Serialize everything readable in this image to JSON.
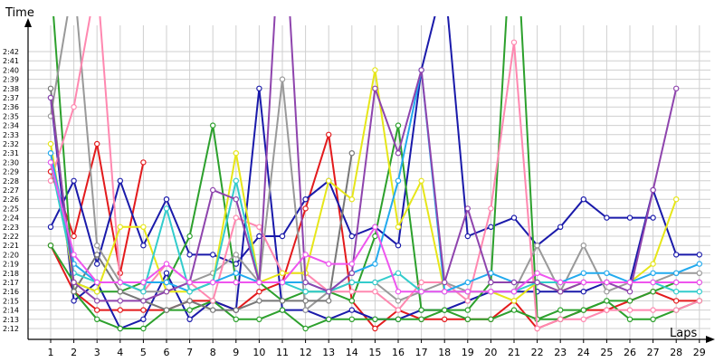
{
  "chart_data": {
    "type": "line",
    "title": "",
    "xlabel": "Laps",
    "ylabel": "Time",
    "x": [
      1,
      2,
      3,
      4,
      5,
      6,
      7,
      8,
      9,
      10,
      11,
      12,
      13,
      14,
      15,
      16,
      17,
      18,
      19,
      20,
      21,
      22,
      23,
      24,
      25,
      26,
      27,
      28,
      29
    ],
    "ylim_seconds": [
      128,
      165
    ],
    "y_tick_labels": [
      "2:12",
      "2:13",
      "2:14",
      "2:15",
      "2:16",
      "2:17",
      "2:18",
      "2:19",
      "2:20",
      "2:21",
      "2:22",
      "2:23",
      "2:24",
      "2:25",
      "2:26",
      "2:27",
      "2:28",
      "2:29",
      "2:30",
      "2:31",
      "2:32",
      "2:33",
      "2:34",
      "2:35",
      "2:36",
      "2:37",
      "2:38",
      "2:39",
      "2:40",
      "2:41",
      "2:42"
    ],
    "grid": true,
    "series": [
      {
        "color": "#e31a1c",
        "values": [
          "2:29",
          "2:22",
          "2:32",
          "2:18",
          "2:30",
          null,
          null,
          null,
          null,
          null,
          null,
          null,
          null,
          null,
          null,
          null,
          null,
          null,
          null,
          null,
          null,
          null,
          null,
          null,
          null,
          null,
          null,
          null,
          null
        ]
      },
      {
        "color": "#e31a1c",
        "values": [
          "2:21",
          "2:16",
          "2:14",
          "2:14",
          "2:14",
          "2:14",
          "2:15",
          "2:15",
          "2:14",
          "2:16",
          "2:17",
          "2:25",
          "2:33",
          "2:15",
          "2:12",
          "2:14",
          "2:13",
          "2:13",
          "2:13",
          "2:13",
          "2:15",
          "2:12",
          "2:13",
          "2:14",
          "2:14",
          "2:15",
          "2:16",
          "2:15",
          "2:15"
        ]
      },
      {
        "color": "#1a1aaa",
        "values": [
          "2:37",
          "2:15",
          "2:17",
          "2:12",
          "2:13",
          "2:18",
          "2:13",
          "2:15",
          "2:14",
          "2:38",
          "2:14",
          "2:14",
          "2:13",
          "2:14",
          "2:13",
          "2:13",
          "2:14",
          "2:14",
          "2:15",
          "2:16",
          "2:16",
          "2:16",
          "2:16",
          "2:16",
          "2:17",
          "2:17",
          "2:27",
          "2:20",
          "2:20"
        ]
      },
      {
        "color": "#1a1aaa",
        "values": [
          "2:23",
          "2:28",
          "2:19",
          "2:28",
          "2:21",
          "2:26",
          "2:20",
          "2:20",
          "2:19",
          "2:22",
          "2:22",
          "2:26",
          "2:28",
          "2:22",
          "2:23",
          "2:21",
          "2:40",
          "2:50",
          "2:22",
          "2:23",
          "2:24",
          "2:21",
          "2:23",
          "2:26",
          "2:24",
          "2:24",
          "2:24",
          null,
          null
        ]
      },
      {
        "color": "#2ca02c",
        "values": [
          "2:50",
          "2:16",
          "2:13",
          "2:12",
          "2:12",
          "2:14",
          "2:14",
          "2:15",
          "2:13",
          "2:13",
          "2:14",
          "2:12",
          "2:13",
          "2:13",
          "2:13",
          "2:13",
          "2:13",
          "2:14",
          "2:13",
          "2:13",
          "2:14",
          "2:13",
          "2:13",
          "2:14",
          "2:15",
          "2:13",
          "2:13",
          "2:14",
          "2:15"
        ]
      },
      {
        "color": "#2ca02c",
        "values": [
          "2:21",
          "2:17",
          "2:16",
          "2:16",
          "2:17",
          "2:17",
          "2:22",
          "2:34",
          "2:17",
          "2:17",
          "2:15",
          "2:16",
          "2:16",
          "2:15",
          "2:22",
          "2:34",
          "2:14",
          "2:14",
          "2:14",
          "2:17",
          "2:60",
          "2:13",
          "2:14",
          "2:14",
          "2:15",
          "2:15",
          "2:16",
          "2:17",
          "2:17"
        ]
      },
      {
        "color": "#999999",
        "values": [
          "2:35",
          "2:50",
          "2:21",
          "2:17",
          "2:16",
          "2:16",
          "2:17",
          "2:18",
          "2:20",
          "2:17",
          "2:39",
          "2:14",
          "2:16",
          "2:17",
          "2:17",
          "2:15",
          "2:16",
          "2:17",
          "2:16",
          "2:16",
          "2:16",
          "2:21",
          "2:16",
          "2:21",
          "2:16",
          "2:17",
          "2:17",
          "2:18",
          "2:18"
        ]
      },
      {
        "color": "#777777",
        "values": [
          "2:38",
          "2:16",
          "2:20",
          "2:16",
          "2:15",
          "2:14",
          "2:15",
          "2:14",
          "2:14",
          "2:15",
          "2:15",
          "2:15",
          "2:15",
          "2:31",
          null,
          null,
          null,
          null,
          null,
          null,
          null,
          null,
          null,
          null,
          null,
          null,
          null,
          null,
          null
        ]
      },
      {
        "color": "#ff88b0",
        "values": [
          "2:28",
          "2:36",
          "2:50",
          "2:17",
          "2:16",
          "2:19",
          "2:17",
          "2:15",
          "2:24",
          "2:23",
          "2:18",
          "2:18",
          "2:16",
          "2:16",
          "2:16",
          "2:14",
          "2:17",
          "2:17",
          "2:15",
          "2:25",
          "2:43",
          "2:12",
          "2:13",
          "2:13",
          "2:14",
          "2:14",
          "2:14",
          "2:14",
          "2:15"
        ]
      },
      {
        "color": "#e6e619",
        "values": [
          "2:32",
          "2:17",
          "2:16",
          "2:23",
          "2:23",
          "2:16",
          "2:16",
          "2:17",
          "2:31",
          "2:17",
          "2:18",
          "2:18",
          "2:28",
          "2:26",
          "2:40",
          "2:23",
          "2:28",
          "2:16",
          "2:16",
          "2:16",
          "2:15",
          "2:17",
          "2:16",
          "2:17",
          "2:17",
          "2:17",
          "2:19",
          "2:26",
          null
        ]
      },
      {
        "color": "#22aaee",
        "values": [
          "2:31",
          "2:19",
          "2:17",
          "2:17",
          "2:17",
          "2:17",
          "2:16",
          "2:17",
          "2:18",
          "2:17",
          "2:17",
          "2:17",
          "2:16",
          "2:18",
          "2:19",
          "2:28",
          "2:40",
          "2:16",
          "2:17",
          "2:18",
          "2:17",
          "2:17",
          "2:17",
          "2:18",
          "2:18",
          "2:17",
          "2:18",
          "2:18",
          "2:19"
        ]
      },
      {
        "color": "#33cccc",
        "values": [
          "2:30",
          "2:18",
          "2:17",
          "2:17",
          "2:16",
          "2:25",
          "2:16",
          "2:17",
          "2:28",
          "2:17",
          "2:17",
          "2:16",
          "2:16",
          "2:17",
          "2:17",
          "2:18",
          "2:16",
          "2:16",
          "2:16",
          "2:16",
          "2:16",
          "2:17",
          "2:17",
          "2:17",
          "2:17",
          "2:17",
          "2:17",
          "2:16",
          "2:16"
        ]
      },
      {
        "color": "#8e44ad",
        "values": [
          "2:37",
          "2:17",
          "2:15",
          "2:15",
          "2:15",
          "2:16",
          "2:17",
          "2:27",
          "2:26",
          "2:17",
          "2:60",
          "2:17",
          "2:16",
          "2:18",
          "2:38",
          "2:31",
          "2:40",
          "2:17",
          "2:25",
          "2:17",
          "2:17",
          "2:17",
          "2:16",
          "2:17",
          "2:17",
          "2:16",
          "2:27",
          "2:38",
          null
        ]
      },
      {
        "color": "#ee55ee",
        "values": [
          "2:30",
          "2:20",
          "2:17",
          "2:17",
          "2:17",
          "2:19",
          "2:17",
          "2:17",
          "2:17",
          "2:17",
          "2:17",
          "2:20",
          "2:19",
          "2:19",
          "2:23",
          "2:16",
          "2:16",
          "2:16",
          "2:16",
          "2:16",
          "2:16",
          "2:18",
          "2:17",
          "2:17",
          "2:17",
          "2:17",
          "2:17",
          "2:17",
          "2:17"
        ]
      }
    ]
  }
}
